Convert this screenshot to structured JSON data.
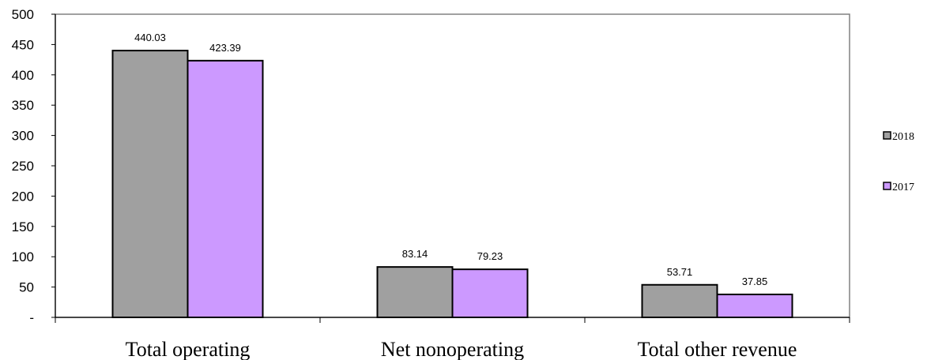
{
  "chart_data": {
    "type": "bar",
    "categories": [
      "Total operating",
      "Net nonoperating",
      "Total other revenue"
    ],
    "series": [
      {
        "name": "2018",
        "values": [
          440.03,
          83.14,
          53.71
        ],
        "color": "#a0a0a0"
      },
      {
        "name": "2017",
        "values": [
          423.39,
          79.23,
          37.85
        ],
        "color": "#cc99ff"
      }
    ],
    "data_labels": [
      [
        "440.03",
        "83.14",
        "53.71"
      ],
      [
        "423.39",
        "79.23",
        "37.85"
      ]
    ],
    "y_ticks": [
      "-",
      "50",
      "100",
      "150",
      "200",
      "250",
      "300",
      "350",
      "400",
      "450",
      "500"
    ],
    "ylim": [
      0,
      500
    ],
    "grid": false,
    "legend_position": "right"
  }
}
